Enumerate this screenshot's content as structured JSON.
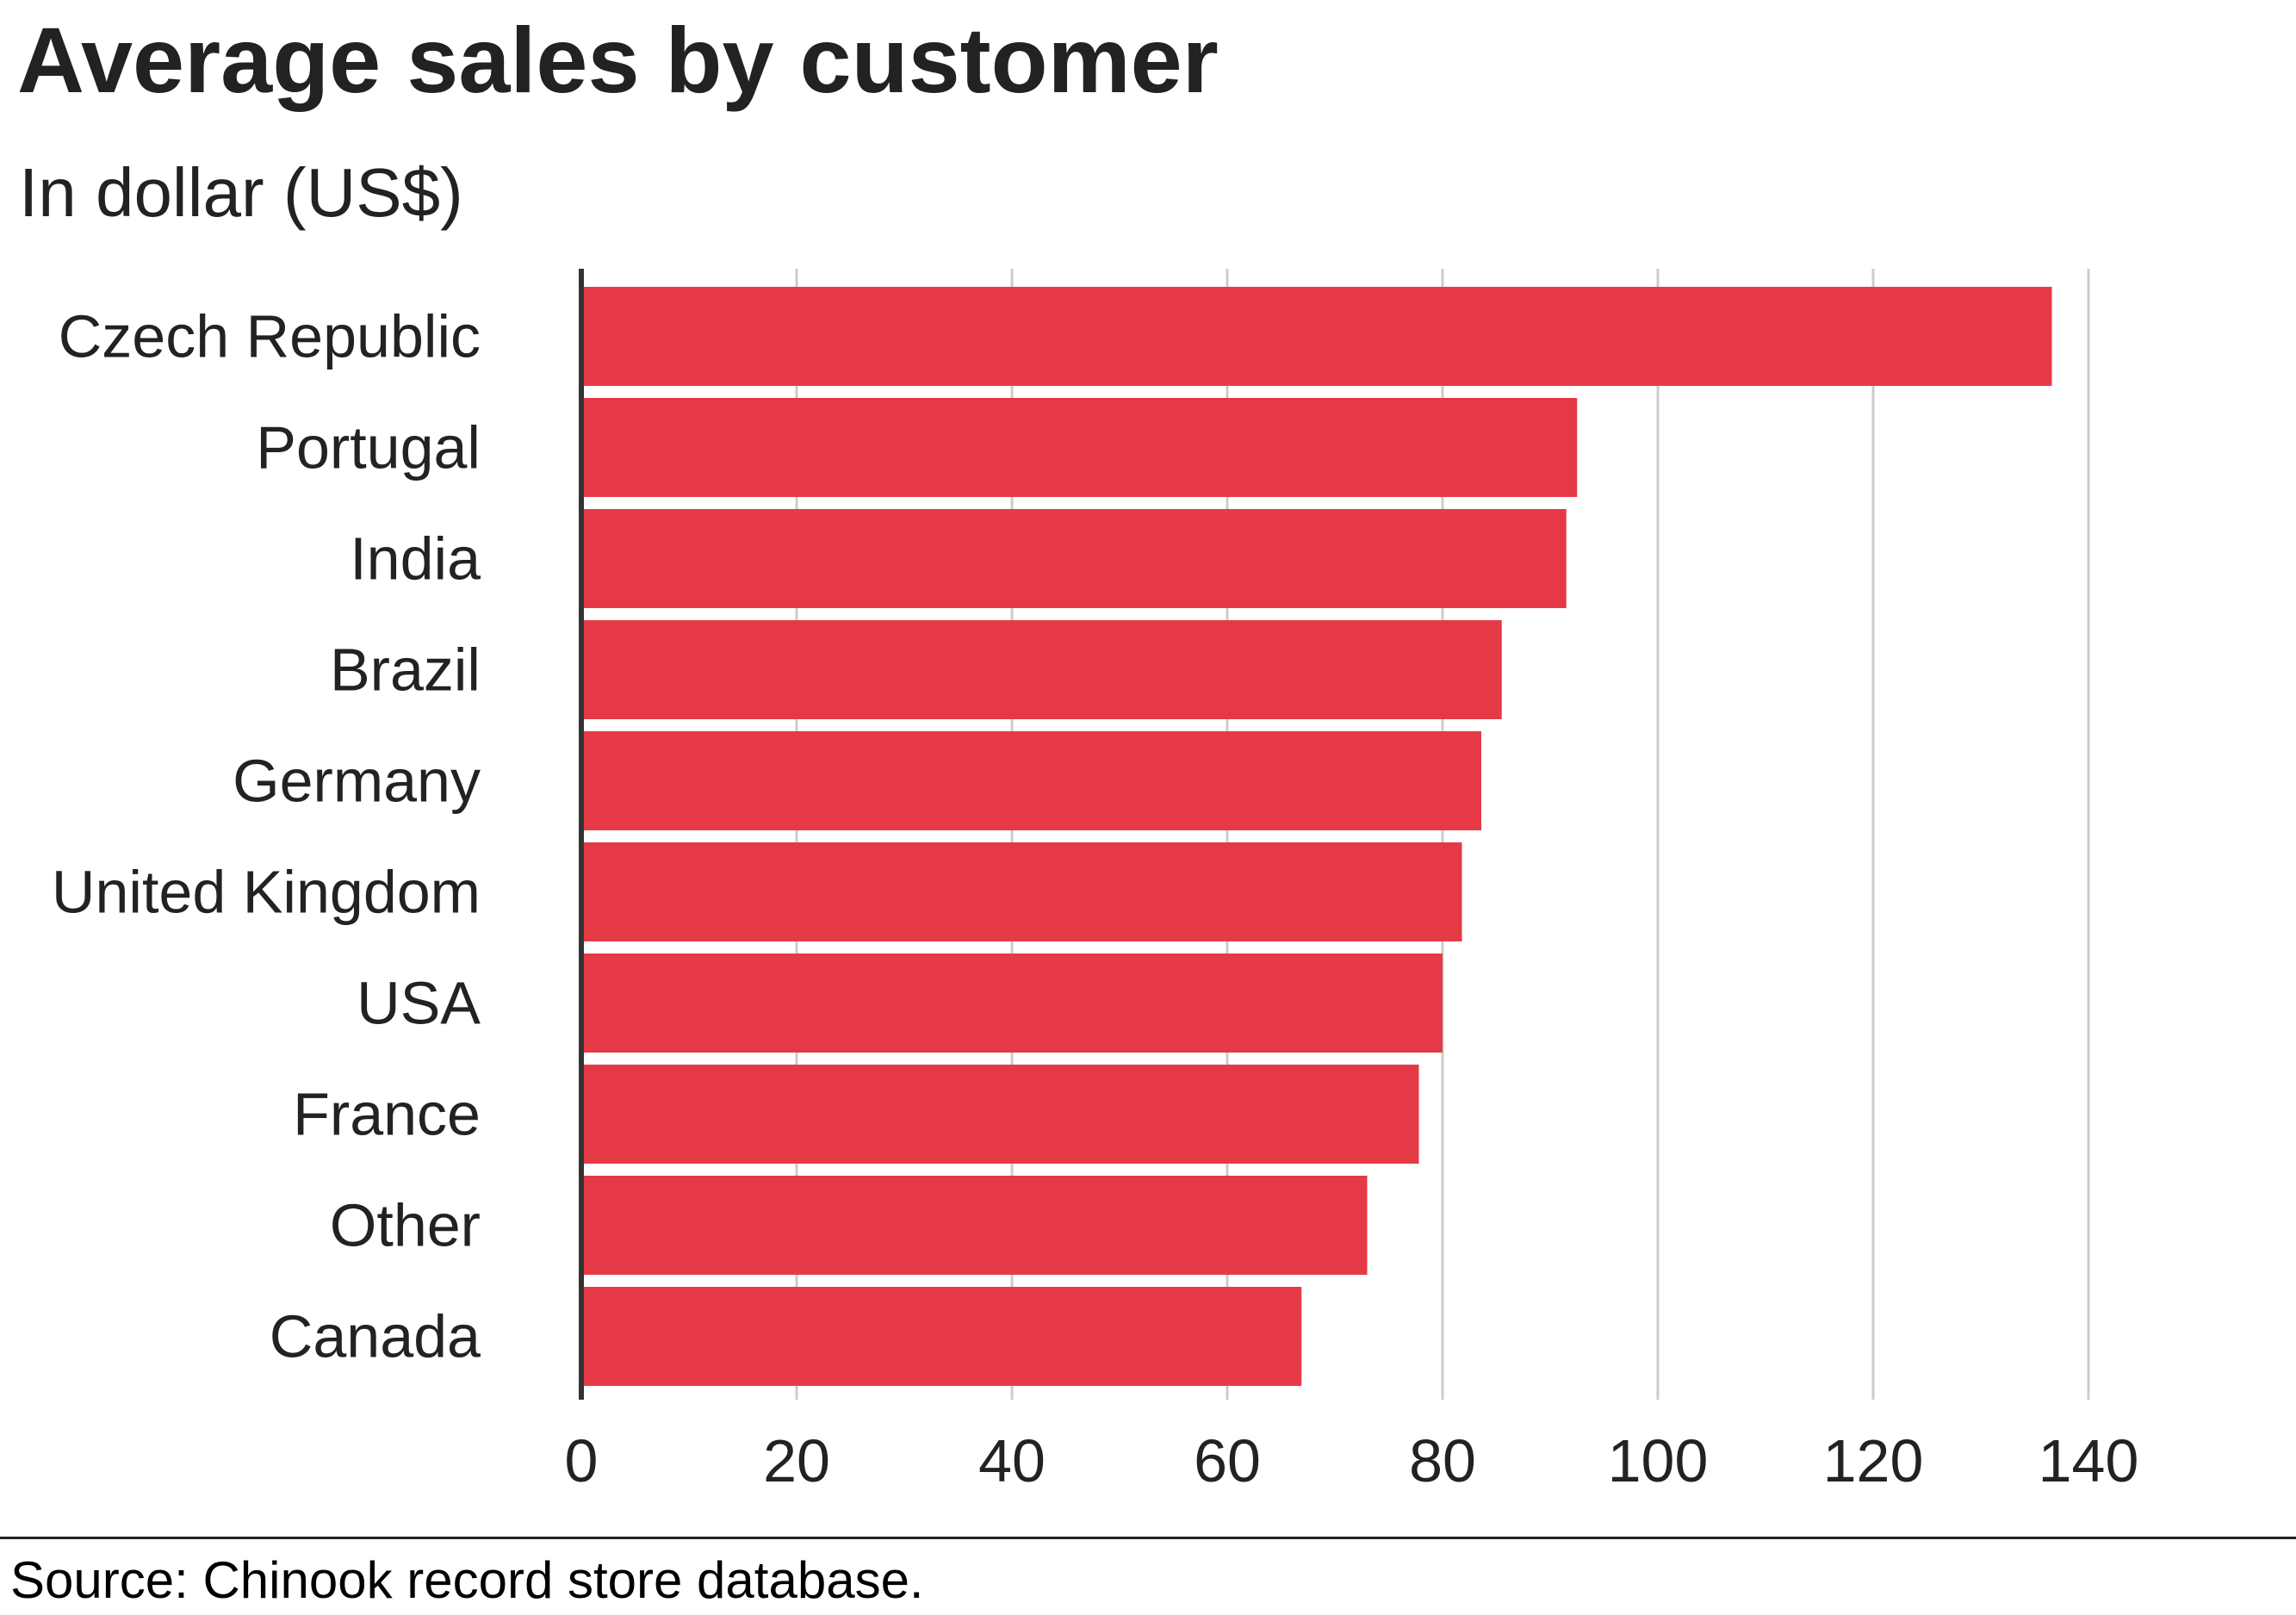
{
  "chart_data": {
    "type": "bar",
    "orientation": "horizontal",
    "title": "Average sales by customer",
    "subtitle": "In dollar (US$)",
    "categories": [
      "Czech Republic",
      "Portugal",
      "India",
      "Brazil",
      "Germany",
      "United Kingdom",
      "USA",
      "France",
      "Other",
      "Canada"
    ],
    "values": [
      136.6,
      92.5,
      91.5,
      85.5,
      83.6,
      81.8,
      80.0,
      77.8,
      73.0,
      66.9
    ],
    "xlim": [
      0,
      150
    ],
    "xticks": [
      0,
      20,
      40,
      60,
      80,
      100,
      120,
      140
    ],
    "xlabel": "",
    "ylabel": "",
    "grid": "vertical",
    "legend": "none",
    "bar_color": "#E63946",
    "grid_color": "#CCCCCC",
    "axis_color": "#333333"
  },
  "source": "Source: Chinook record store database."
}
